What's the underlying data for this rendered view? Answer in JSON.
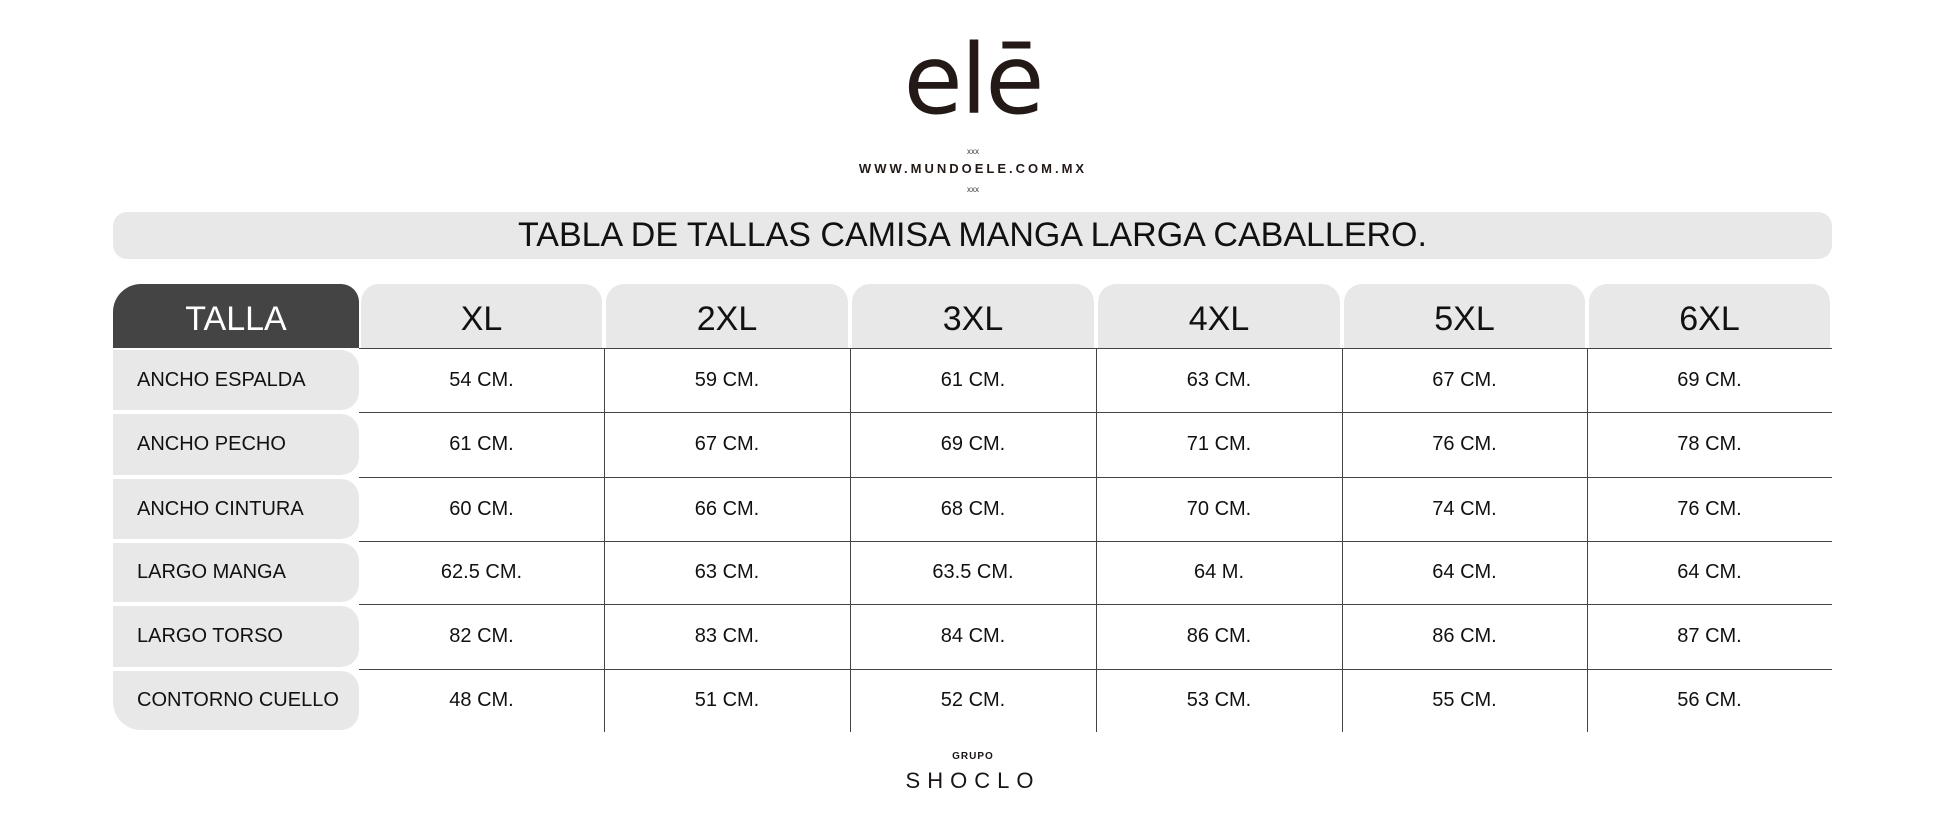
{
  "brand": {
    "logo": "elē",
    "website": "WWW.MUNDOELE.COM.MX",
    "separator": "xxx"
  },
  "title": "TABLA DE TALLAS CAMISA MANGA LARGA CABALLERO.",
  "table": {
    "corner": "TALLA",
    "sizes": [
      "XL",
      "2XL",
      "3XL",
      "4XL",
      "5XL",
      "6XL"
    ],
    "rows": [
      {
        "label": "ANCHO ESPALDA",
        "values": [
          "54 CM.",
          "59 CM.",
          "61 CM.",
          "63 CM.",
          "67 CM.",
          "69 CM."
        ]
      },
      {
        "label": "ANCHO PECHO",
        "values": [
          "61 CM.",
          "67 CM.",
          "69 CM.",
          "71 CM.",
          "76 CM.",
          "78 CM."
        ]
      },
      {
        "label": "ANCHO CINTURA",
        "values": [
          "60 CM.",
          "66 CM.",
          "68 CM.",
          "70 CM.",
          "74 CM.",
          "76 CM."
        ]
      },
      {
        "label": "LARGO MANGA",
        "values": [
          "62.5 CM.",
          "63 CM.",
          "63.5 CM.",
          "64  M.",
          "64 CM.",
          "64 CM."
        ]
      },
      {
        "label": "LARGO TORSO",
        "values": [
          "82 CM.",
          "83 CM.",
          "84 CM.",
          "86 CM.",
          "86 CM.",
          "87 CM."
        ]
      },
      {
        "label": "CONTORNO CUELLO",
        "values": [
          "48 CM.",
          "51 CM.",
          "52 CM.",
          "53 CM.",
          "55 CM.",
          "56 CM."
        ]
      }
    ]
  },
  "footer": {
    "group": "GRUPO",
    "name": "SHOCLO"
  },
  "colors": {
    "header_dark": "#444444",
    "cell_gray": "#e8e8e8",
    "text": "#231a17"
  }
}
